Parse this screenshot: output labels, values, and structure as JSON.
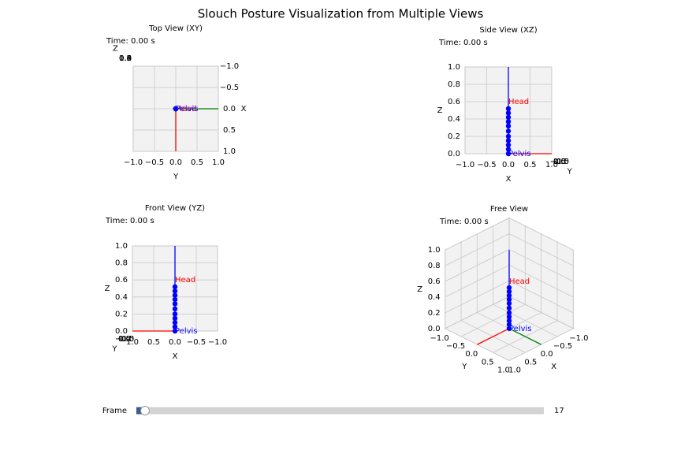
{
  "title": "Slouch Posture Visualization from Multiple Views",
  "chart_data": [
    {
      "type": "scatter3d",
      "title": "Top View (XY)",
      "time_text": "Time: 0.00 s",
      "elev": 90,
      "azim": 0,
      "xlabel": "X",
      "ylabel": "Y",
      "zlabel": "Z",
      "xlim": [
        -1,
        1
      ],
      "ylim": [
        -1,
        1
      ],
      "zlim": [
        0,
        1
      ],
      "xticks": [
        {
          "value": -1,
          "label": "−1.0"
        },
        {
          "value": -0.5,
          "label": "−0.5"
        },
        {
          "value": 0,
          "label": "0.0"
        },
        {
          "value": 0.5,
          "label": "0.5"
        },
        {
          "value": 1,
          "label": "1.0"
        }
      ],
      "yticks": [
        {
          "value": -1,
          "label": "−1.0"
        },
        {
          "value": -0.5,
          "label": "−0.5"
        },
        {
          "value": 0,
          "label": "0.0"
        },
        {
          "value": 0.5,
          "label": "0.5"
        },
        {
          "value": 1,
          "label": "1.0"
        }
      ],
      "zticks": [
        {
          "value": 0,
          "label": "0.0"
        },
        {
          "value": 0.2,
          "label": "0.2"
        },
        {
          "value": 0.4,
          "label": "0.4"
        },
        {
          "value": 0.6,
          "label": "0.6"
        },
        {
          "value": 0.8,
          "label": "0.8"
        },
        {
          "value": 1,
          "label": "1.0"
        }
      ],
      "x": [
        0,
        0,
        0,
        0,
        0,
        0,
        0,
        0,
        0,
        0,
        0
      ],
      "y": [
        0,
        0,
        0,
        0,
        0,
        0,
        0,
        0,
        0,
        0,
        0
      ],
      "z": [
        0,
        0.05,
        0.1,
        0.15,
        0.2,
        0.26,
        0.32,
        0.37,
        0.42,
        0.47,
        0.52
      ],
      "color": "blue",
      "axis_lines": [
        {
          "color": "red",
          "x": [
            0,
            1
          ],
          "y": [
            0,
            0
          ],
          "z": [
            0,
            0
          ]
        },
        {
          "color": "green",
          "x": [
            0,
            0
          ],
          "y": [
            0,
            1
          ],
          "z": [
            0,
            0
          ]
        },
        {
          "color": "blue",
          "x": [
            0,
            0
          ],
          "y": [
            0,
            0
          ],
          "z": [
            0,
            1
          ]
        }
      ],
      "annotations": [
        {
          "text": "Head",
          "color": "red",
          "x": 0,
          "y": 0,
          "z": 0.6
        },
        {
          "text": "Pelvis",
          "color": "blue",
          "x": 0,
          "y": 0,
          "z": 0
        }
      ]
    },
    {
      "type": "scatter3d",
      "title": "Side View (XZ)",
      "time_text": "Time: 0.00 s",
      "elev": 0,
      "azim": -90,
      "xlabel": "X",
      "ylabel": "Y",
      "zlabel": "Z",
      "xlim": [
        -1,
        1
      ],
      "ylim": [
        -1,
        1
      ],
      "zlim": [
        0,
        1
      ],
      "xticks": [
        {
          "value": -1,
          "label": "−1.0"
        },
        {
          "value": -0.5,
          "label": "−0.5"
        },
        {
          "value": 0,
          "label": "0.0"
        },
        {
          "value": 0.5,
          "label": "0.5"
        },
        {
          "value": 1,
          "label": "1.0"
        }
      ],
      "yticks": [
        {
          "value": -1,
          "label": "−1.0"
        },
        {
          "value": -0.5,
          "label": "−0.5"
        },
        {
          "value": 0,
          "label": "0.0"
        },
        {
          "value": 0.5,
          "label": "0.5"
        },
        {
          "value": 1,
          "label": "1.0"
        }
      ],
      "zticks": [
        {
          "value": 0,
          "label": "0.0"
        },
        {
          "value": 0.2,
          "label": "0.2"
        },
        {
          "value": 0.4,
          "label": "0.4"
        },
        {
          "value": 0.6,
          "label": "0.6"
        },
        {
          "value": 0.8,
          "label": "0.8"
        },
        {
          "value": 1,
          "label": "1.0"
        }
      ],
      "x": [
        0,
        0,
        0,
        0,
        0,
        0,
        0,
        0,
        0,
        0,
        0
      ],
      "y": [
        0,
        0,
        0,
        0,
        0,
        0,
        0,
        0,
        0,
        0,
        0
      ],
      "z": [
        0,
        0.05,
        0.1,
        0.15,
        0.2,
        0.26,
        0.32,
        0.37,
        0.42,
        0.47,
        0.52
      ],
      "color": "blue",
      "axis_lines": [
        {
          "color": "red",
          "x": [
            0,
            1
          ],
          "y": [
            0,
            0
          ],
          "z": [
            0,
            0
          ]
        },
        {
          "color": "green",
          "x": [
            0,
            0
          ],
          "y": [
            0,
            1
          ],
          "z": [
            0,
            0
          ]
        },
        {
          "color": "blue",
          "x": [
            0,
            0
          ],
          "y": [
            0,
            0
          ],
          "z": [
            0,
            1
          ]
        }
      ],
      "annotations": [
        {
          "text": "Head",
          "color": "red",
          "x": 0,
          "y": 0,
          "z": 0.6
        },
        {
          "text": "Pelvis",
          "color": "blue",
          "x": 0,
          "y": 0,
          "z": 0
        }
      ]
    },
    {
      "type": "scatter3d",
      "title": "Front View (YZ)",
      "time_text": "Time: 0.00 s",
      "elev": 0,
      "azim": 90,
      "xlabel": "X",
      "ylabel": "Y",
      "zlabel": "Z",
      "xlim": [
        -1,
        1
      ],
      "ylim": [
        -1,
        1
      ],
      "zlim": [
        0,
        1
      ],
      "xticks": [
        {
          "value": -1,
          "label": "−1.0"
        },
        {
          "value": -0.5,
          "label": "−0.5"
        },
        {
          "value": 0,
          "label": "0.0"
        },
        {
          "value": 0.5,
          "label": "0.5"
        },
        {
          "value": 1,
          "label": "1.0"
        }
      ],
      "yticks": [
        {
          "value": -1,
          "label": "−1.0"
        },
        {
          "value": -0.5,
          "label": "−0.5"
        },
        {
          "value": 0,
          "label": "0.0"
        },
        {
          "value": 0.5,
          "label": "0.5"
        },
        {
          "value": 1,
          "label": "1.0"
        }
      ],
      "zticks": [
        {
          "value": 0,
          "label": "0.0"
        },
        {
          "value": 0.2,
          "label": "0.2"
        },
        {
          "value": 0.4,
          "label": "0.4"
        },
        {
          "value": 0.6,
          "label": "0.6"
        },
        {
          "value": 0.8,
          "label": "0.8"
        },
        {
          "value": 1,
          "label": "1.0"
        }
      ],
      "x": [
        0,
        0,
        0,
        0,
        0,
        0,
        0,
        0,
        0,
        0,
        0
      ],
      "y": [
        0,
        0,
        0,
        0,
        0,
        0,
        0,
        0,
        0,
        0,
        0
      ],
      "z": [
        0,
        0.05,
        0.1,
        0.15,
        0.2,
        0.26,
        0.32,
        0.37,
        0.42,
        0.47,
        0.52
      ],
      "color": "blue",
      "axis_lines": [
        {
          "color": "red",
          "x": [
            0,
            1
          ],
          "y": [
            0,
            0
          ],
          "z": [
            0,
            0
          ]
        },
        {
          "color": "green",
          "x": [
            0,
            0
          ],
          "y": [
            0,
            1
          ],
          "z": [
            0,
            0
          ]
        },
        {
          "color": "blue",
          "x": [
            0,
            0
          ],
          "y": [
            0,
            0
          ],
          "z": [
            0,
            1
          ]
        }
      ],
      "annotations": [
        {
          "text": "Head",
          "color": "red",
          "x": 0,
          "y": 0,
          "z": 0.6
        },
        {
          "text": "Pelvis",
          "color": "blue",
          "x": 0,
          "y": 0,
          "z": 0
        }
      ]
    },
    {
      "type": "scatter3d",
      "title": "Free View",
      "time_text": "Time: 0.00 s",
      "elev": 30,
      "azim": 45,
      "xlabel": "X",
      "ylabel": "Y",
      "zlabel": "Z",
      "xlim": [
        -1,
        1
      ],
      "ylim": [
        -1,
        1
      ],
      "zlim": [
        0,
        1
      ],
      "xticks": [
        {
          "value": -1,
          "label": "−1.0"
        },
        {
          "value": -0.5,
          "label": "−0.5"
        },
        {
          "value": 0,
          "label": "0.0"
        },
        {
          "value": 0.5,
          "label": "0.5"
        },
        {
          "value": 1,
          "label": "1.0"
        }
      ],
      "yticks": [
        {
          "value": -1,
          "label": "−1.0"
        },
        {
          "value": -0.5,
          "label": "−0.5"
        },
        {
          "value": 0,
          "label": "0.0"
        },
        {
          "value": 0.5,
          "label": "0.5"
        },
        {
          "value": 1,
          "label": "1.0"
        }
      ],
      "zticks": [
        {
          "value": 0,
          "label": "0.0"
        },
        {
          "value": 0.2,
          "label": "0.2"
        },
        {
          "value": 0.4,
          "label": "0.4"
        },
        {
          "value": 0.6,
          "label": "0.6"
        },
        {
          "value": 0.8,
          "label": "0.8"
        },
        {
          "value": 1,
          "label": "1.0"
        }
      ],
      "x": [
        0,
        0,
        0,
        0,
        0,
        0,
        0,
        0,
        0,
        0,
        0
      ],
      "y": [
        0,
        0,
        0,
        0,
        0,
        0,
        0,
        0,
        0,
        0,
        0
      ],
      "z": [
        0,
        0.05,
        0.1,
        0.15,
        0.2,
        0.26,
        0.32,
        0.37,
        0.42,
        0.47,
        0.52
      ],
      "color": "blue",
      "axis_lines": [
        {
          "color": "red",
          "x": [
            0,
            1
          ],
          "y": [
            0,
            0
          ],
          "z": [
            0,
            0
          ]
        },
        {
          "color": "green",
          "x": [
            0,
            0
          ],
          "y": [
            0,
            1
          ],
          "z": [
            0,
            0
          ]
        },
        {
          "color": "blue",
          "x": [
            0,
            0
          ],
          "y": [
            0,
            0
          ],
          "z": [
            0,
            1
          ]
        }
      ],
      "annotations": [
        {
          "text": "Head",
          "color": "red",
          "x": 0,
          "y": 0,
          "z": 0.6
        },
        {
          "text": "Pelvis",
          "color": "blue",
          "x": 0,
          "y": 0,
          "z": 0
        }
      ]
    }
  ],
  "slider": {
    "label": "Frame",
    "value": 17,
    "xlim": [
      0,
      800
    ]
  }
}
